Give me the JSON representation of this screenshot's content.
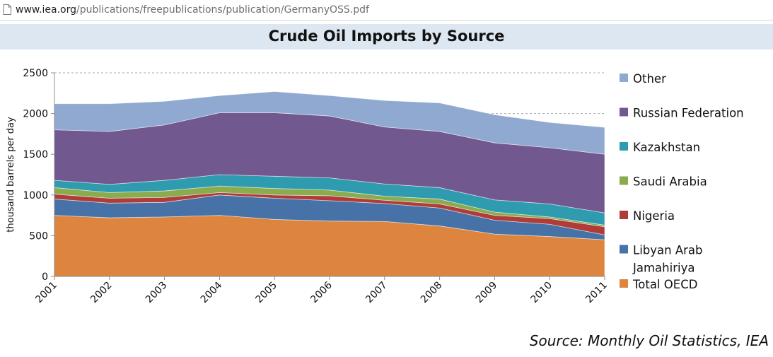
{
  "browser": {
    "url_host": "www.iea.org",
    "url_path": "/publications/freepublications/publication/GermanyOSS.pdf",
    "page_icon": "document-icon"
  },
  "chart_data": {
    "type": "area",
    "stacked": true,
    "title": "Crude Oil Imports by Source",
    "xlabel": "",
    "ylabel": "thousand barrels per day",
    "ylim": [
      0,
      2500
    ],
    "yticks": [
      0,
      500,
      1000,
      1500,
      2000,
      2500
    ],
    "grid": "horizontal dashed",
    "legend_position": "right",
    "categories": [
      "2001",
      "2002",
      "2003",
      "2004",
      "2005",
      "2006",
      "2007",
      "2008",
      "2009",
      "2010",
      "2011"
    ],
    "series": [
      {
        "name": "Total OECD",
        "color": "#dd853f",
        "values": [
          750,
          720,
          730,
          750,
          700,
          680,
          675,
          620,
          520,
          490,
          450
        ]
      },
      {
        "name": "Libyan Arab Jamahiriya",
        "color": "#4672a8",
        "values": [
          200,
          180,
          180,
          250,
          260,
          250,
          220,
          220,
          170,
          150,
          60
        ]
      },
      {
        "name": "Nigeria",
        "color": "#b03c3a",
        "values": [
          60,
          60,
          60,
          30,
          40,
          60,
          40,
          50,
          60,
          70,
          100
        ]
      },
      {
        "name": "Saudi Arabia",
        "color": "#8aac4f",
        "values": [
          80,
          70,
          80,
          80,
          80,
          70,
          50,
          60,
          40,
          20,
          20
        ]
      },
      {
        "name": "Kazakhstan",
        "color": "#2f9bae",
        "values": [
          90,
          100,
          130,
          140,
          150,
          150,
          150,
          140,
          150,
          160,
          150
        ]
      },
      {
        "name": "Russian Federation",
        "color": "#71588f",
        "values": [
          620,
          650,
          680,
          760,
          780,
          760,
          700,
          690,
          700,
          690,
          720
        ]
      },
      {
        "name": "Other",
        "color": "#8fa9d0",
        "values": [
          320,
          340,
          290,
          210,
          260,
          250,
          325,
          350,
          345,
          310,
          330
        ]
      }
    ]
  },
  "source_note": "Source: Monthly Oil Statistics, IEA"
}
